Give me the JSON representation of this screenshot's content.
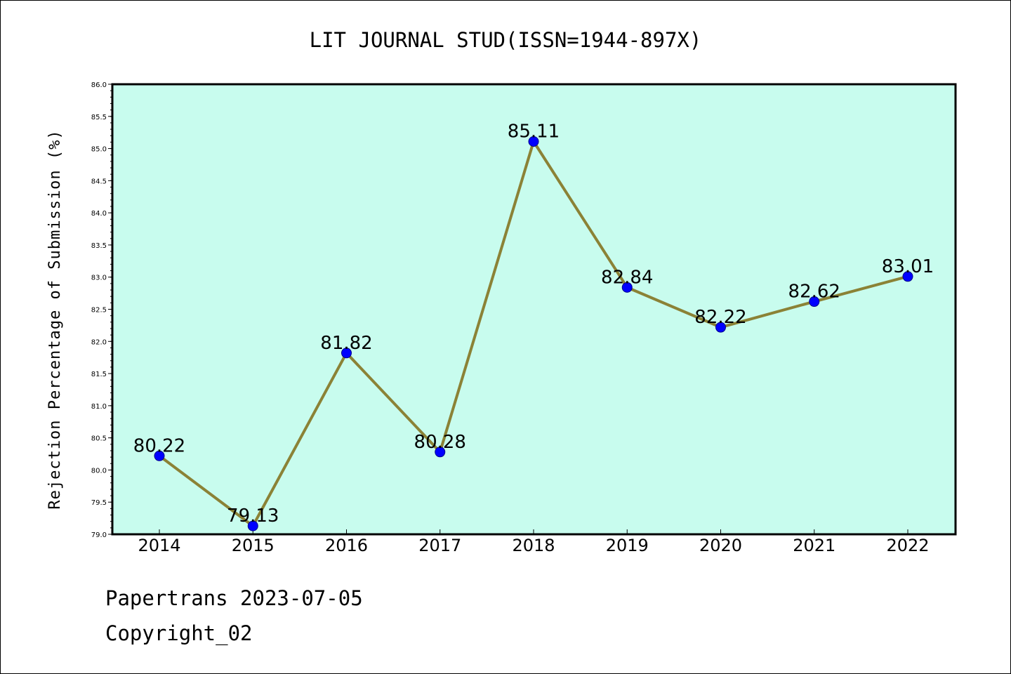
{
  "chart_data": {
    "type": "line",
    "title": "LIT JOURNAL STUD(ISSN=1944-897X)",
    "xlabel": "",
    "ylabel": "Rejection Percentage of Submission (%)",
    "categories": [
      "2014",
      "2015",
      "2016",
      "2017",
      "2018",
      "2019",
      "2020",
      "2021",
      "2022"
    ],
    "series": [
      {
        "values": [
          80.22,
          79.13,
          81.82,
          80.28,
          85.11,
          82.84,
          82.22,
          82.62,
          83.01
        ],
        "data_labels": [
          "80.22",
          "79.13",
          "81.82",
          "80.28",
          "85.11",
          "82.84",
          "82.22",
          "82.62",
          "83.01"
        ]
      }
    ],
    "ylim": [
      79.0,
      86.0
    ],
    "yticks": [
      "79.0",
      "79.5",
      "80.0",
      "80.5",
      "81.0",
      "81.5",
      "82.0",
      "82.5",
      "83.0",
      "83.5",
      "84.0",
      "84.5",
      "85.0",
      "85.5",
      "86.0"
    ],
    "grid": false,
    "legend": "none",
    "colors": {
      "plot_background": "#c8fcee",
      "line": "#8b8236",
      "marker": "#0000ff",
      "marker_edge": "#00008b"
    }
  },
  "footer": {
    "line1": "Papertrans 2023-07-05",
    "line2": "Copyright_02"
  }
}
